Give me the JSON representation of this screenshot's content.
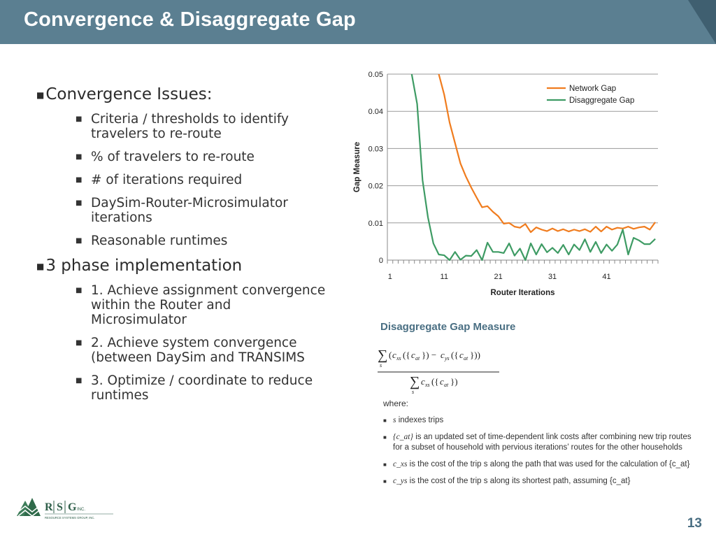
{
  "header": {
    "title": "Convergence & Disaggregate Gap"
  },
  "bullets": [
    {
      "label": "Convergence Issues:",
      "children": [
        "Criteria / thresholds to identify travelers to re-route",
        "% of travelers to re-route",
        "# of iterations required",
        "DaySim-Router-Microsimulator iterations",
        "Reasonable runtimes"
      ]
    },
    {
      "label": "3 phase implementation",
      "children": [
        "1.  Achieve assignment convergence within the Router and Microsimulator",
        "2.  Achieve system convergence (between DaySim and TRANSIMS",
        "3.  Optimize / coordinate to reduce runtimes"
      ]
    }
  ],
  "chart_data": {
    "type": "line",
    "title": "",
    "xlabel": "Router Iterations",
    "ylabel": "Gap Measure",
    "xlim": [
      1,
      50
    ],
    "ylim": [
      0,
      0.05
    ],
    "x_ticks": [
      1,
      11,
      21,
      31,
      41
    ],
    "y_ticks": [
      "0",
      "0.01",
      "0.02",
      "0.03",
      "0.04",
      "0.05"
    ],
    "legend_position": "top-right",
    "series": [
      {
        "name": "Network Gap",
        "color": "#f07c1e",
        "x": [
          10,
          11,
          12,
          13,
          14,
          15,
          16,
          17,
          18,
          19,
          20,
          21,
          22,
          23,
          24,
          25,
          26,
          27,
          28,
          29,
          30,
          31,
          32,
          33,
          34,
          35,
          36,
          37,
          38,
          39,
          40,
          41,
          42,
          43,
          44,
          45,
          46,
          47,
          48,
          49,
          50
        ],
        "values": [
          0.05,
          0.0445,
          0.037,
          0.0315,
          0.026,
          0.0225,
          0.0195,
          0.0168,
          0.0142,
          0.0145,
          0.013,
          0.0118,
          0.0098,
          0.01,
          0.009,
          0.0087,
          0.0097,
          0.0075,
          0.0088,
          0.0082,
          0.0078,
          0.0085,
          0.0078,
          0.0083,
          0.0077,
          0.0082,
          0.0078,
          0.0083,
          0.0076,
          0.009,
          0.0077,
          0.009,
          0.0082,
          0.0087,
          0.0085,
          0.009,
          0.0084,
          0.0088,
          0.009,
          0.0082,
          0.0102
        ]
      },
      {
        "name": "Disaggregate Gap",
        "color": "#3e9b64",
        "x": [
          5,
          6,
          7,
          8,
          9,
          10,
          11,
          12,
          13,
          14,
          15,
          16,
          17,
          18,
          19,
          20,
          21,
          22,
          23,
          24,
          25,
          26,
          27,
          28,
          29,
          30,
          31,
          32,
          33,
          34,
          35,
          36,
          37,
          38,
          39,
          40,
          41,
          42,
          43,
          44,
          45,
          46,
          47,
          48,
          49,
          50
        ],
        "values": [
          0.05,
          0.042,
          0.0215,
          0.0115,
          0.0045,
          0.0015,
          0.0013,
          0.0,
          0.0022,
          0.0001,
          0.0012,
          0.0011,
          0.0027,
          0.0,
          0.0047,
          0.0022,
          0.0022,
          0.0019,
          0.0045,
          0.0012,
          0.0031,
          0.0,
          0.0045,
          0.0015,
          0.0043,
          0.0021,
          0.0033,
          0.0019,
          0.0041,
          0.0015,
          0.0042,
          0.0027,
          0.0056,
          0.0022,
          0.0049,
          0.0019,
          0.0042,
          0.0025,
          0.0042,
          0.0082,
          0.0015,
          0.006,
          0.0053,
          0.0043,
          0.0043,
          0.0057
        ]
      }
    ]
  },
  "formula_section": {
    "title": "Disaggregate Gap Measure",
    "where_label": "where:",
    "definitions": [
      {
        "symbol": "s",
        "text": "indexes trips"
      },
      {
        "symbol": "{c_at}",
        "text": "is an updated set of time-dependent link costs after combining new trip routes for a subset of household with pervious iterations’ routes for the other households"
      },
      {
        "symbol": "c_xs",
        "text": "is the cost of the trip s along the path that was used for the calculation of {c_at}"
      },
      {
        "symbol": "c_ys",
        "text": "is the cost of the trip s along its shortest path, assuming {c_at}"
      }
    ]
  },
  "logo": {
    "letters": [
      "R",
      "S",
      "G"
    ],
    "suffix": "INC.",
    "subtitle": "RESOURCE SYSTEMS GROUP, INC."
  },
  "page_number": "13"
}
